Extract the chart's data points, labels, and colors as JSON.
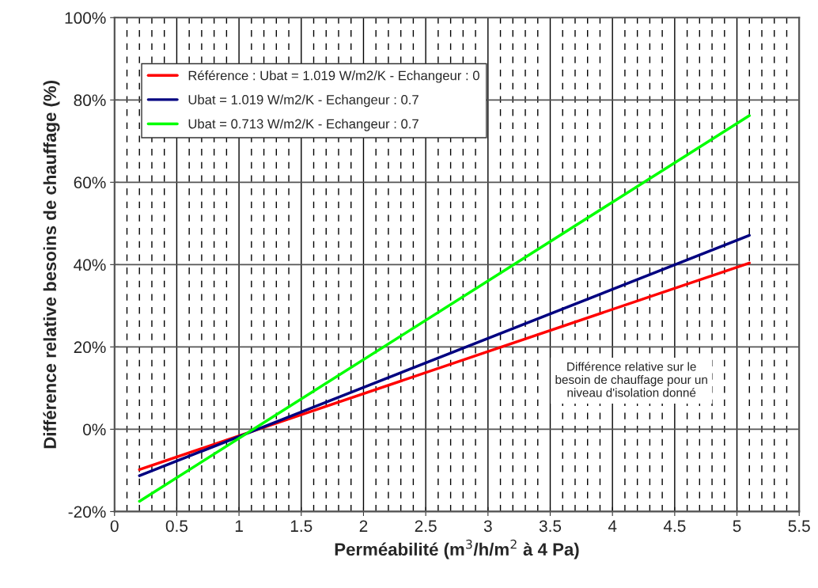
{
  "chart_data": {
    "type": "line",
    "xlabel": "Perméabilité (m$^{3}$/h/m$^{2}$ à 4 Pa)",
    "ylabel": "Différence relative besoins de chauffage (%)",
    "x": [
      0.2,
      5.1
    ],
    "series": [
      {
        "name": "Référence : Ubat = 1.019 W/m2/K - Echangeur : 0",
        "color": "#ff0000",
        "values": [
          -9.8,
          40.4
        ]
      },
      {
        "name": "Ubat = 1.019 W/m2/K - Echangeur : 0.7",
        "color": "#000080",
        "values": [
          -11.3,
          47.1
        ]
      },
      {
        "name": "Ubat = 0.713 W/m2/K - Echangeur : 0.7",
        "color": "#00ff00",
        "values": [
          -17.5,
          76.2
        ]
      }
    ],
    "xlim": [
      0,
      5.5
    ],
    "xticks": [
      0,
      0.5,
      1,
      1.5,
      2,
      2.5,
      3,
      3.5,
      4,
      4.5,
      5,
      5.5
    ],
    "ylim": [
      -20,
      100
    ],
    "yticks": [
      {
        "value": -20,
        "label": "-20%"
      },
      {
        "value": 0,
        "label": "0%"
      },
      {
        "value": 20,
        "label": "20%"
      },
      {
        "value": 40,
        "label": "40%"
      },
      {
        "value": 60,
        "label": "60%"
      },
      {
        "value": 80,
        "label": "80%"
      },
      {
        "value": 100,
        "label": "100%"
      }
    ],
    "annotations": [
      "Différence relative sur le\nbesoin de chauffage pour un\nniveau d'isolation donné"
    ],
    "grid": true,
    "legend": "top left",
    "marker": "none",
    "line_style": "solid"
  }
}
